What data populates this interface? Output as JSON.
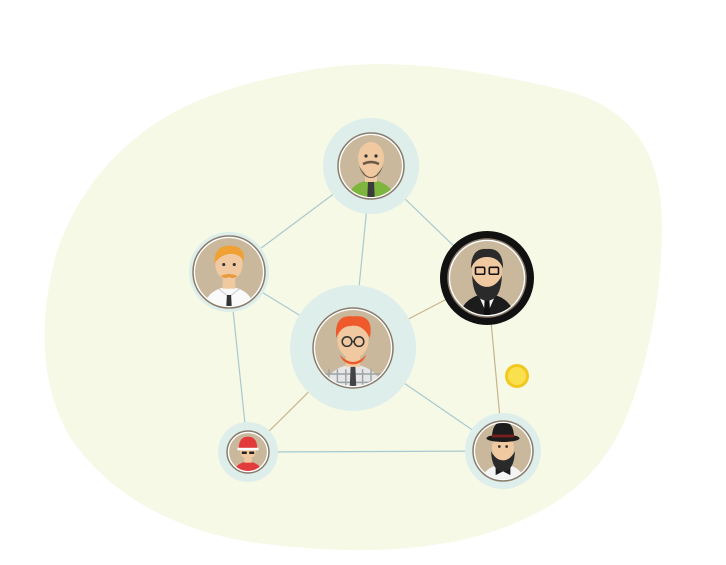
{
  "colors": {
    "background": "#ffffff",
    "blob": "#f5f9e6",
    "halo": "#deeeeb",
    "link_blue": "#a9c9d0",
    "link_tan": "#c8b48c",
    "dot": "#fbe04d",
    "dot_ring": "#f2c81e",
    "featured_ring": "#111111"
  },
  "network": {
    "nodes": [
      {
        "id": "top",
        "icon": "bald-bearded-man-green-shirt-avatar"
      },
      {
        "id": "left",
        "icon": "ginger-man-mustache-white-shirt-avatar"
      },
      {
        "id": "center",
        "icon": "red-hair-man-glasses-plaid-shirt-avatar"
      },
      {
        "id": "right",
        "icon": "bearded-man-glasses-black-suit-avatar",
        "highlighted": true
      },
      {
        "id": "bottom-left",
        "icon": "man-red-cap-red-shirt-avatar"
      },
      {
        "id": "bottom-right",
        "icon": "bearded-man-bowler-hat-bowtie-avatar"
      }
    ],
    "links": [
      {
        "from": "top",
        "to": "left",
        "tone": "blue"
      },
      {
        "from": "top",
        "to": "center",
        "tone": "blue"
      },
      {
        "from": "top",
        "to": "right",
        "tone": "blue"
      },
      {
        "from": "left",
        "to": "center",
        "tone": "blue"
      },
      {
        "from": "left",
        "to": "bottom-left",
        "tone": "blue"
      },
      {
        "from": "center",
        "to": "right",
        "tone": "tan"
      },
      {
        "from": "center",
        "to": "bottom-left",
        "tone": "tan"
      },
      {
        "from": "center",
        "to": "bottom-right",
        "tone": "blue"
      },
      {
        "from": "right",
        "to": "bottom-right",
        "tone": "tan"
      },
      {
        "from": "bottom-left",
        "to": "bottom-right",
        "tone": "blue"
      }
    ],
    "dot": {
      "icon": "yellow-dot-icon"
    }
  }
}
